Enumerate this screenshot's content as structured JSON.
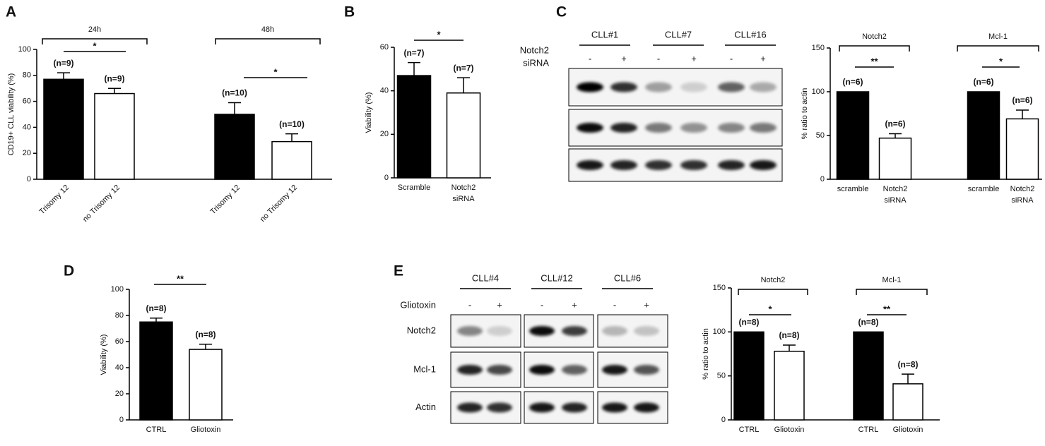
{
  "panels": [
    "A",
    "B",
    "C",
    "D",
    "E"
  ],
  "chart_data": [
    {
      "type": "bar",
      "y_label": "CD19+ CLL viability (%)",
      "groups": [
        "24h",
        "48h"
      ],
      "categories": [
        [
          "Trisomy 12"
        ],
        [
          "no Trisomy 12"
        ],
        [
          "Trisomy 12"
        ],
        [
          "no Trisomy 12"
        ]
      ],
      "values": [
        77,
        66,
        50,
        29
      ],
      "errors": [
        5,
        4,
        9,
        6
      ],
      "colors": [
        "#000000",
        "#ffffff",
        "#000000",
        "#ffffff"
      ],
      "n_labels": [
        "(n=9)",
        "(n=9)",
        "(n=10)",
        "(n=10)"
      ],
      "significance": [
        "*",
        "*"
      ],
      "ylim": [
        0,
        100
      ],
      "yticks": [
        0,
        20,
        40,
        60,
        80,
        100
      ]
    },
    {
      "type": "bar",
      "y_label": "Viability  (%)",
      "categories": [
        [
          "Scramble"
        ],
        [
          "Notch2",
          "siRNA"
        ]
      ],
      "values": [
        47,
        39
      ],
      "errors": [
        6,
        7
      ],
      "colors": [
        "#000000",
        "#ffffff"
      ],
      "n_labels": [
        "(n=7)",
        "(n=7)"
      ],
      "significance": [
        "*"
      ],
      "ylim": [
        0,
        60
      ],
      "yticks": [
        0,
        20,
        40,
        60
      ]
    },
    {
      "type": "bar",
      "y_label": "% ratio to actin",
      "groups": [
        "Notch2",
        "Mcl-1"
      ],
      "categories": [
        [
          "scramble"
        ],
        [
          "Notch2",
          "siRNA"
        ],
        [
          "scramble"
        ],
        [
          "Notch2",
          "siRNA"
        ]
      ],
      "values": [
        100,
        47,
        100,
        69
      ],
      "errors": [
        null,
        5,
        null,
        10
      ],
      "colors": [
        "#000000",
        "#ffffff",
        "#000000",
        "#ffffff"
      ],
      "n_labels": [
        "(n=6)",
        "(n=6)",
        "(n=6)",
        "(n=6)"
      ],
      "significance": [
        "**",
        "*"
      ],
      "ylim": [
        0,
        150
      ],
      "yticks": [
        0,
        50,
        100,
        150
      ]
    },
    {
      "type": "bar",
      "y_label": "Viability (%)",
      "categories": [
        [
          "CTRL"
        ],
        [
          "Gliotoxin"
        ]
      ],
      "values": [
        75,
        54
      ],
      "errors": [
        3,
        4
      ],
      "colors": [
        "#000000",
        "#ffffff"
      ],
      "n_labels": [
        "(n=8)",
        "(n=8)"
      ],
      "significance": [
        "**"
      ],
      "ylim": [
        0,
        100
      ],
      "yticks": [
        0,
        20,
        40,
        60,
        80,
        100
      ]
    },
    {
      "type": "bar",
      "y_label": "% ratio to actin",
      "groups": [
        "Notch2",
        "Mcl-1"
      ],
      "categories": [
        [
          "CTRL"
        ],
        [
          "Gliotoxin"
        ],
        [
          "CTRL"
        ],
        [
          "Gliotoxin"
        ]
      ],
      "values": [
        100,
        78,
        100,
        41
      ],
      "errors": [
        null,
        7,
        null,
        11
      ],
      "colors": [
        "#000000",
        "#ffffff",
        "#000000",
        "#ffffff"
      ],
      "n_labels": [
        "(n=8)",
        "(n=8)",
        "(n=8)",
        "(n=8)"
      ],
      "significance": [
        "*",
        "**"
      ],
      "ylim": [
        0,
        150
      ],
      "yticks": [
        0,
        50,
        100,
        150
      ]
    }
  ],
  "blots": [
    {
      "samples": [
        "CLL#1",
        "CLL#7",
        "CLL#16"
      ],
      "treatment": [
        "Notch2",
        "siRNA"
      ],
      "lane_labels": [
        "-",
        "+"
      ]
    },
    {
      "samples": [
        "CLL#4",
        "CLL#12",
        "CLL#6"
      ],
      "treatment": [
        "Gliotoxin"
      ],
      "lane_labels": [
        "-",
        "+"
      ],
      "rows": [
        "Notch2",
        "Mcl-1",
        "Actin"
      ]
    }
  ]
}
